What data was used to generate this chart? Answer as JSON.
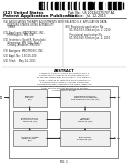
{
  "bg_color": "#ffffff",
  "header_line1": "(12) United States",
  "header_line2": "Patent Application Publication",
  "header_line3": "Pub. No.: US 2013/0275707 A1",
  "header_line4": "Pub. Date:   Jul. 12, 2013",
  "left_col_lines": [
    "(54) ASSOCIATING THERAPY ADJUSTMENTS WITH",
    "      POSTURE STATES USING A STABILITY",
    "      TIMER",
    "",
    "(71) Applicant: MEDTRONIC, INC.,",
    "      Minneapolis, MN (US)",
    "",
    "(72) Inventors: Scott R. Stanslaski,",
    "      Shoreview, MN (US); Paul T.",
    "      Crosby, Andover, MN (US)",
    "",
    "(73) Assignee: MEDTRONIC, INC.",
    "",
    "(21) Appl. No.: 13/115,100",
    "",
    "(22) Filed:    May 24, 2011"
  ],
  "right_col_lines": [
    "RELATED U.S. APPLICATION DATA",
    "",
    "(60) Provisional application No.",
    "      61/350,553, filed on Jun. 2, 2010.",
    "",
    "      Provisional application No.",
    "      61/350,560, filed on Jun. 2, 2010."
  ],
  "abstract_title": "ABSTRACT",
  "abstract_body": "A stability timer is used in association with a posture state classifier to control application of therapy parameter adjustments. The stability timer is started or restarted upon detection of a posture state change. Therapy parameter adjustments associated with the newly detected posture state are applied when the stability timer expires without detection of another posture state change.",
  "fignum": "FIG. 1",
  "boxes_left": [
    {
      "label": "POSTURE\nSENSOR\n(12)",
      "col": 0,
      "row": 0
    },
    {
      "label": "POSTURE STATE\nCLASSIFICATION\nMODULE (14)",
      "col": 0,
      "row": 1
    },
    {
      "label": "STABILITY TIMER\nCOMPARATOR\n(16)",
      "col": 0,
      "row": 2
    }
  ],
  "boxes_right": [
    {
      "label": "DETERMINATION OF\nTHERAPY PARAMETERS\nFOR POSTURE STATES (18)",
      "col": 1,
      "row": 0
    },
    {
      "label": "THERAPY\nDELIVERY\nMODULE (20)",
      "col": 1,
      "row": 1
    },
    {
      "label": "PARAMETER\nSTORAGE (22)",
      "col": 1,
      "row": 2
    }
  ]
}
